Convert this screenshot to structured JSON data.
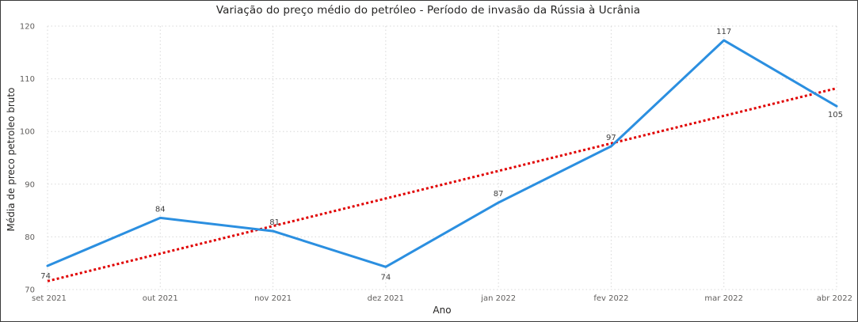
{
  "chart_data": {
    "type": "line",
    "title": "Variação do preço médio do petróleo - Período de invasão da Rússia à Ucrânia",
    "xlabel": "Ano",
    "ylabel": "Média de preco petroleo bruto",
    "categories": [
      "set 2021",
      "out 2021",
      "nov 2021",
      "dez 2021",
      "jan 2022",
      "fev 2022",
      "mar 2022",
      "abr 2022"
    ],
    "yticks": [
      70,
      80,
      90,
      100,
      110,
      120
    ],
    "ylim": [
      70,
      120
    ],
    "grid": true,
    "series": [
      {
        "values": [
          74.5,
          83.6,
          81.1,
          74.3,
          86.5,
          97.2,
          117.3,
          104.8
        ],
        "data_labels": [
          "74",
          "84",
          "81",
          "74",
          "87",
          "97",
          "117",
          "105"
        ],
        "color": "#2b8fe0"
      }
    ],
    "trendline": {
      "style": "dotted",
      "color": "#e00000",
      "start": 71.6,
      "end": 108.2
    }
  }
}
